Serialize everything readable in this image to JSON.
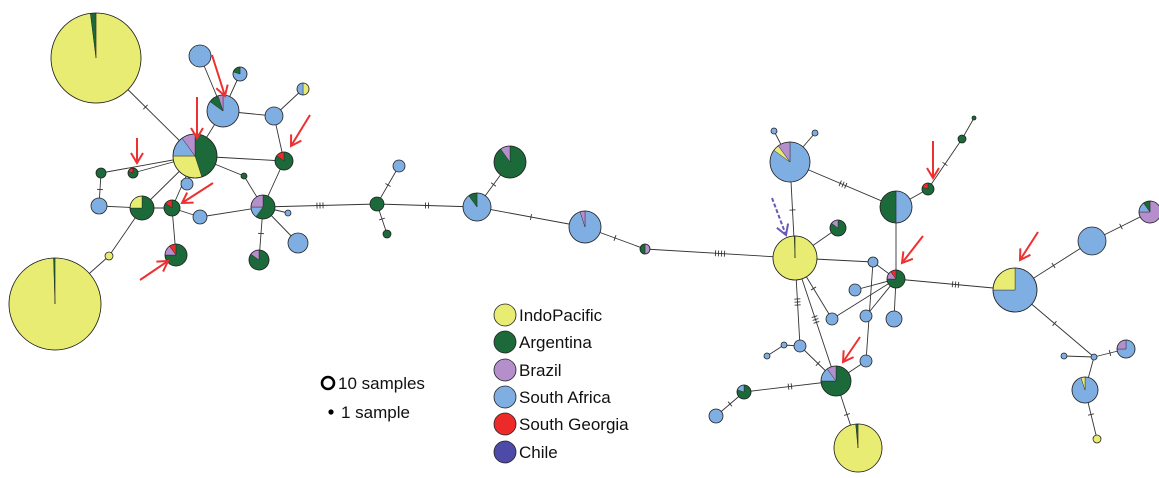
{
  "colors": {
    "indopacific": "#e8ec73",
    "argentina": "#1c6a3a",
    "brazil": "#b48fcc",
    "south_africa": "#7faee3",
    "south_georgia": "#ec2a2a",
    "chile": "#4e4aa7",
    "arrow_red": "#ee3030",
    "arrow_purple": "#6659b8",
    "line": "#333333"
  },
  "legend": {
    "items": [
      {
        "key": "indopacific",
        "label": "IndoPacific"
      },
      {
        "key": "argentina",
        "label": "Argentina"
      },
      {
        "key": "brazil",
        "label": "Brazil"
      },
      {
        "key": "south_africa",
        "label": "South Africa"
      },
      {
        "key": "south_georgia",
        "label": "South Georgia"
      },
      {
        "key": "chile",
        "label": "Chile"
      }
    ]
  },
  "size_legend": {
    "large_label": "10 samples",
    "small_label": "1 sample"
  }
}
